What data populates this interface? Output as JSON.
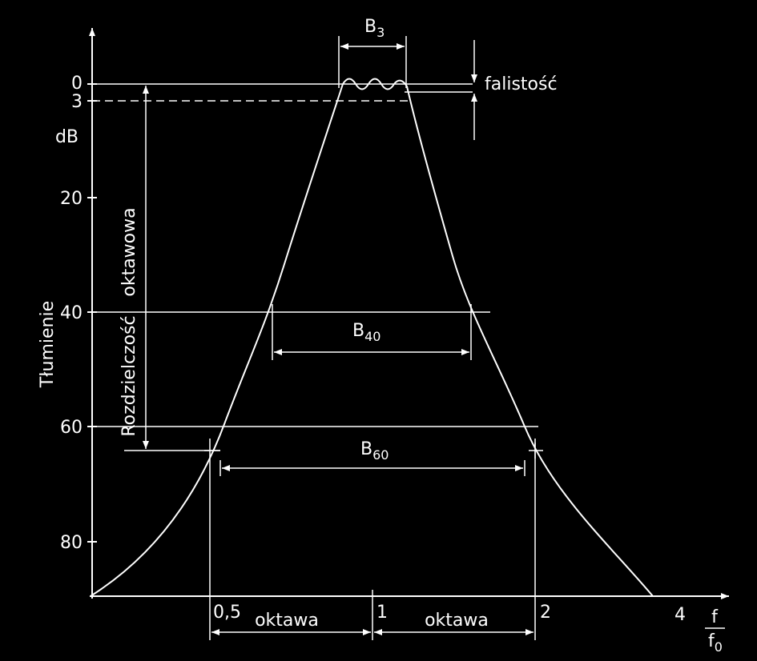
{
  "y_axis": {
    "title": "Tłumienie",
    "unit": "dB",
    "ticks": [
      "0",
      "3",
      "20",
      "40",
      "60",
      "80"
    ]
  },
  "x_axis": {
    "ticks": [
      "0,5",
      "1",
      "2",
      "4"
    ],
    "label": {
      "numerator": "f",
      "denominator": {
        "main": "f",
        "sub": "0"
      }
    }
  },
  "annotations": {
    "b3": {
      "main": "B",
      "sub": "3"
    },
    "b40": {
      "main": "B",
      "sub": "40"
    },
    "b60": {
      "main": "B",
      "sub": "60"
    },
    "ripple": "falistość",
    "resolution": [
      "Rozdzielczość",
      "oktawowa"
    ],
    "octave": [
      "oktawa",
      "oktawa"
    ]
  }
}
